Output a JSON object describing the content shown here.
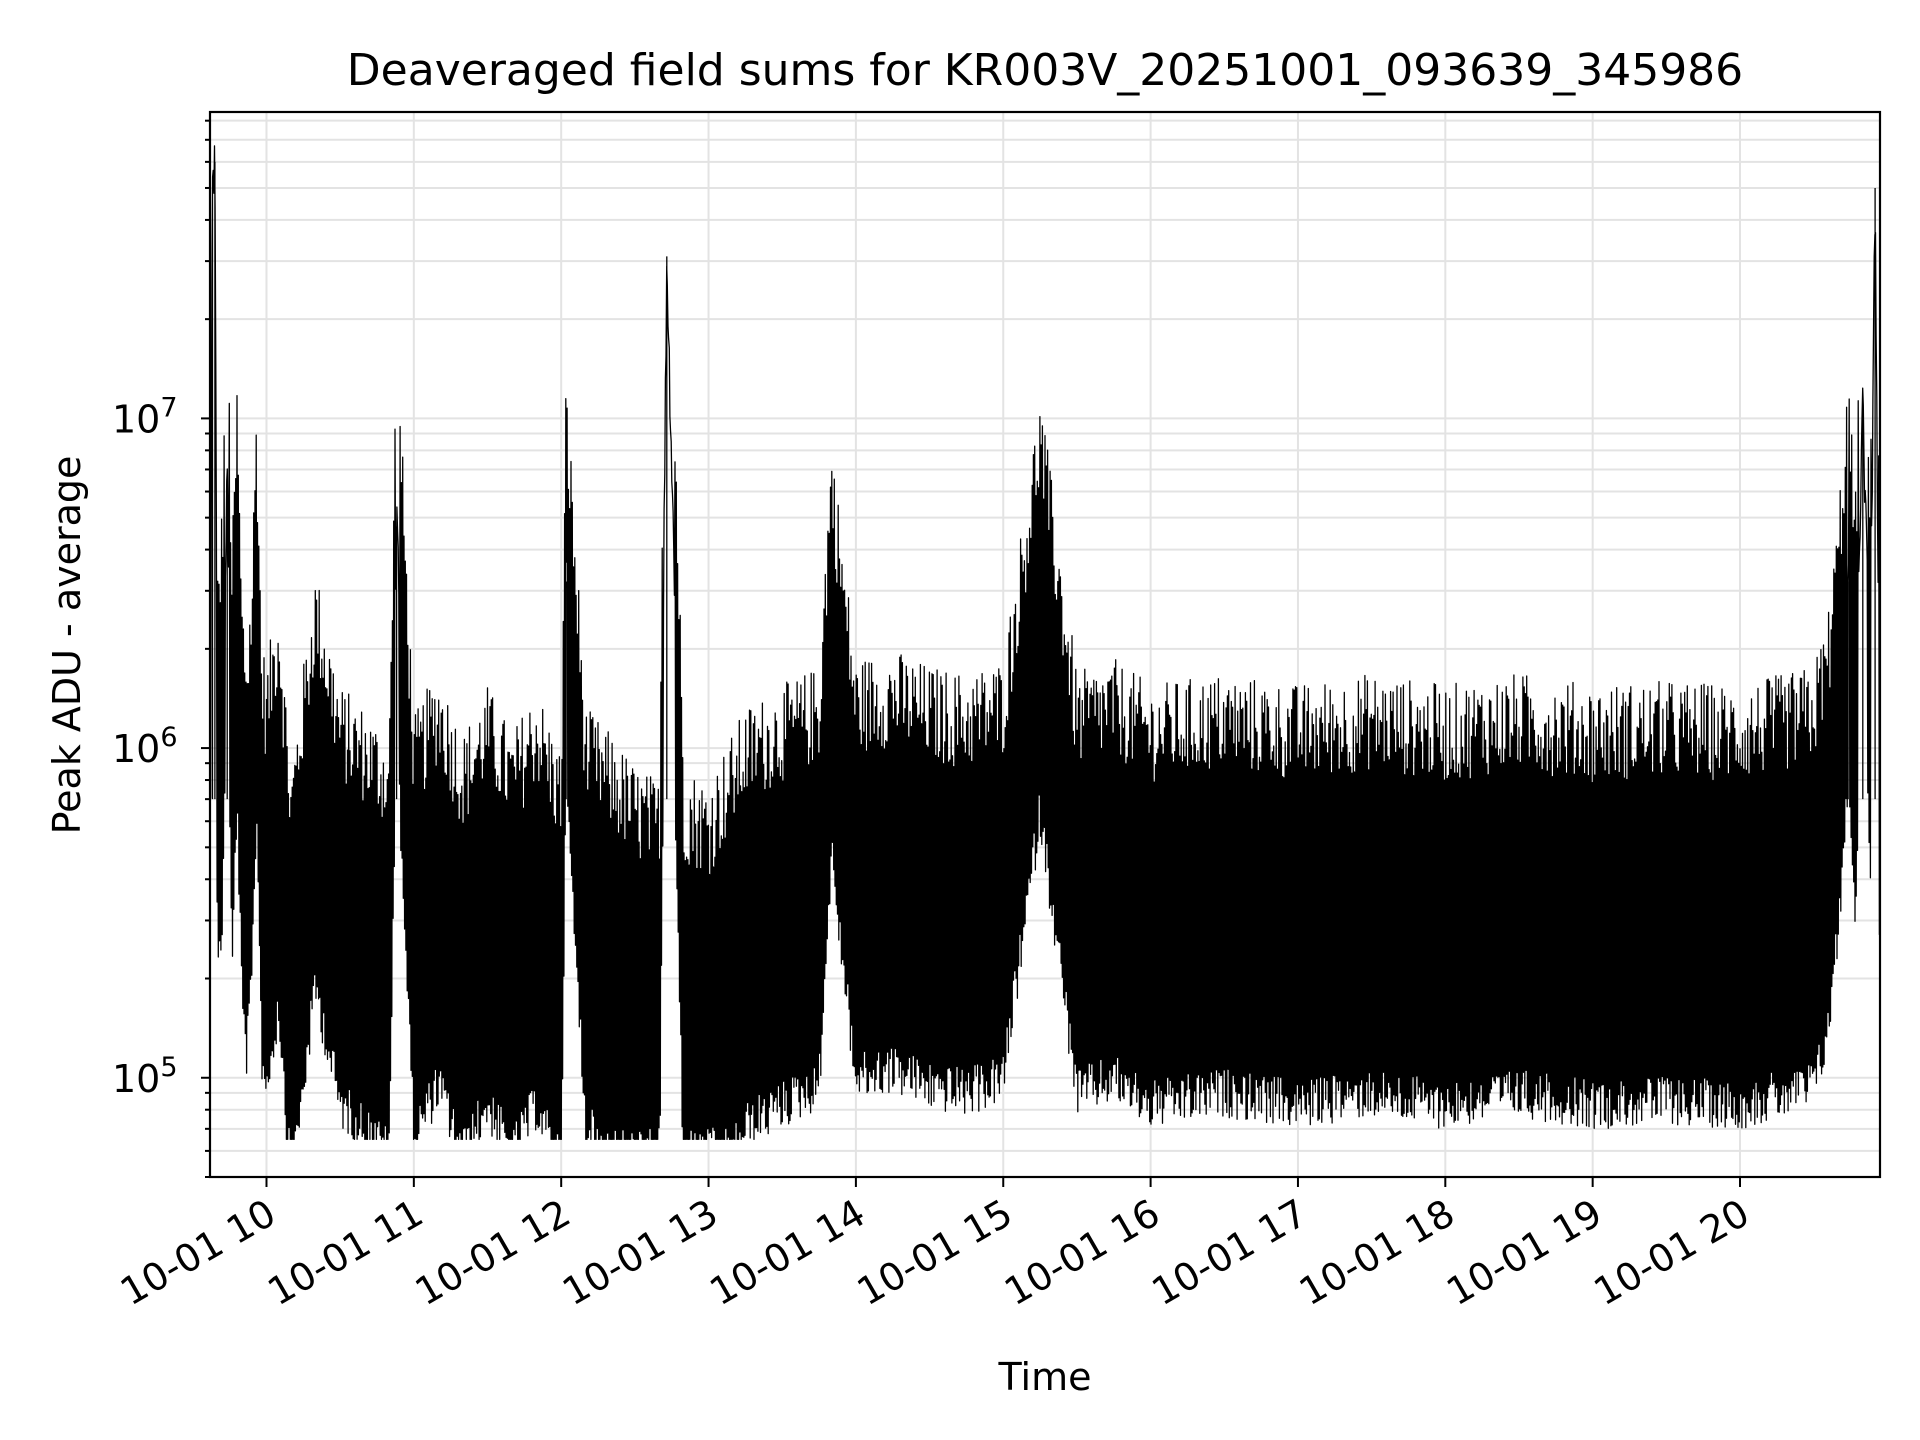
{
  "chart_data": {
    "type": "line",
    "title": "Deaveraged field sums for KR003V_20251001_093639_345986",
    "xlabel": "Time",
    "ylabel": "Peak ADU - average",
    "yscale": "log",
    "ylim": [
      50000,
      85000000
    ],
    "xlim": [
      "2025-10-01 09:37",
      "2025-10-01 20:57"
    ],
    "grid": true,
    "line_color": "#000000",
    "x_tick_labels": [
      "10-01 10",
      "10-01 11",
      "10-01 12",
      "10-01 13",
      "10-01 14",
      "10-01 15",
      "10-01 16",
      "10-01 17",
      "10-01 18",
      "10-01 19",
      "10-01 20"
    ],
    "x_tick_times": [
      "2025-10-01 10:00",
      "2025-10-01 11:00",
      "2025-10-01 12:00",
      "2025-10-01 13:00",
      "2025-10-01 14:00",
      "2025-10-01 15:00",
      "2025-10-01 16:00",
      "2025-10-01 17:00",
      "2025-10-01 18:00",
      "2025-10-01 19:00",
      "2025-10-01 20:00"
    ],
    "y_ticks": [
      {
        "value": 100000,
        "base": "10",
        "exp": "5"
      },
      {
        "value": 1000000,
        "base": "10",
        "exp": "6"
      },
      {
        "value": 10000000,
        "base": "10",
        "exp": "7"
      }
    ],
    "series": [
      {
        "x": [
          "2025-10-01 09:37",
          "2025-10-01 09:38",
          "2025-10-01 09:39",
          "2025-10-01 09:40",
          "2025-10-01 09:42",
          "2025-10-01 09:44",
          "2025-10-01 09:46",
          "2025-10-01 09:48",
          "2025-10-01 09:50",
          "2025-10-01 09:52",
          "2025-10-01 09:54",
          "2025-10-01 09:56",
          "2025-10-01 09:58",
          "2025-10-01 10:00",
          "2025-10-01 10:05",
          "2025-10-01 10:10",
          "2025-10-01 10:20",
          "2025-10-01 10:30",
          "2025-10-01 10:40",
          "2025-10-01 10:50",
          "2025-10-01 10:53",
          "2025-10-01 11:00",
          "2025-10-01 11:10",
          "2025-10-01 11:20",
          "2025-10-01 11:30",
          "2025-10-01 11:40",
          "2025-10-01 11:50",
          "2025-10-01 12:00",
          "2025-10-01 12:02",
          "2025-10-01 12:10",
          "2025-10-01 12:20",
          "2025-10-01 12:30",
          "2025-10-01 12:40",
          "2025-10-01 12:43",
          "2025-10-01 12:50",
          "2025-10-01 13:00",
          "2025-10-01 13:15",
          "2025-10-01 13:30",
          "2025-10-01 13:45",
          "2025-10-01 13:50",
          "2025-10-01 14:00",
          "2025-10-01 14:15",
          "2025-10-01 14:30",
          "2025-10-01 14:45",
          "2025-10-01 15:00",
          "2025-10-01 15:15",
          "2025-10-01 15:30",
          "2025-10-01 15:45",
          "2025-10-01 16:00",
          "2025-10-01 16:30",
          "2025-10-01 17:00",
          "2025-10-01 17:30",
          "2025-10-01 18:00",
          "2025-10-01 18:30",
          "2025-10-01 19:00",
          "2025-10-01 19:30",
          "2025-10-01 20:00",
          "2025-10-01 20:20",
          "2025-10-01 20:30",
          "2025-10-01 20:36",
          "2025-10-01 20:40",
          "2025-10-01 20:44",
          "2025-10-01 20:47",
          "2025-10-01 20:50",
          "2025-10-01 20:53",
          "2025-10-01 20:55",
          "2025-10-01 20:57"
        ],
        "y": [
          1000000,
          50000000,
          60000000,
          800000,
          1300000,
          6500000,
          900000,
          3000000,
          700000,
          500000,
          800000,
          2900000,
          500000,
          400000,
          700000,
          200000,
          800000,
          350000,
          300000,
          250000,
          4700000,
          280000,
          400000,
          250000,
          350000,
          250000,
          350000,
          220000,
          3200000,
          300000,
          250000,
          200000,
          180000,
          31000000,
          200000,
          180000,
          300000,
          350000,
          400000,
          2000000,
          420000,
          450000,
          400000,
          380000,
          420000,
          2700000,
          380000,
          420000,
          350000,
          380000,
          350000,
          380000,
          350000,
          380000,
          350000,
          360000,
          350000,
          380000,
          400000,
          600000,
          1200000,
          3200000,
          1300000,
          11000000,
          1400000,
          50000000,
          700000
        ]
      }
    ]
  }
}
